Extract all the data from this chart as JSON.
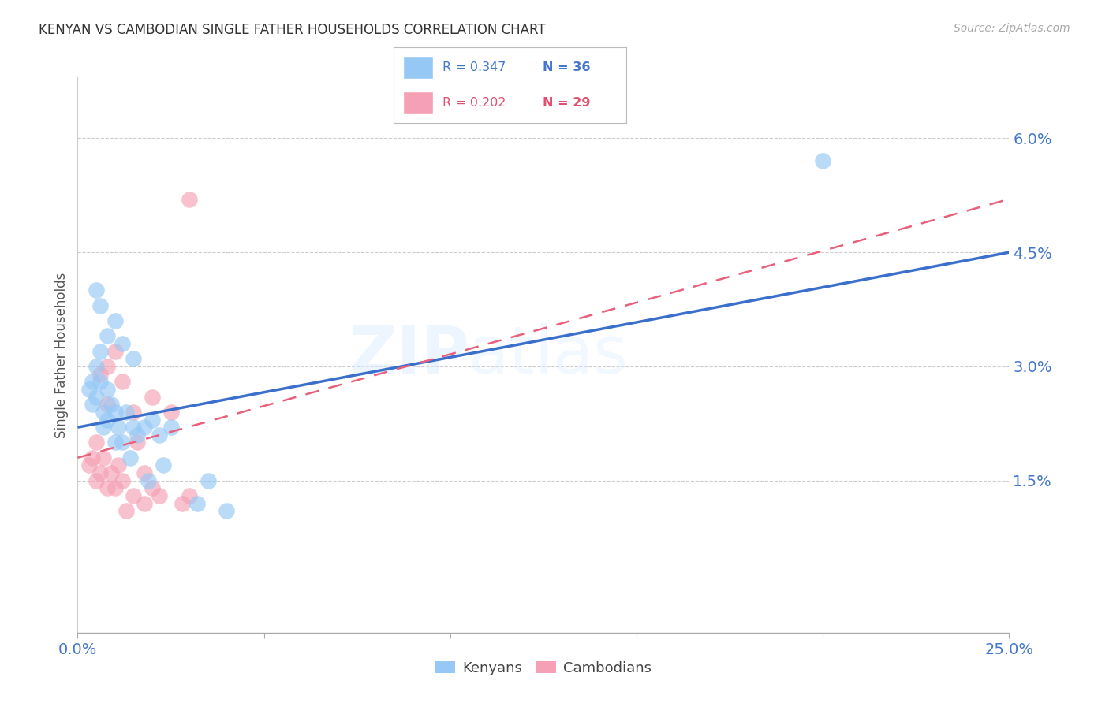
{
  "title": "KENYAN VS CAMBODIAN SINGLE FATHER HOUSEHOLDS CORRELATION CHART",
  "source": "Source: ZipAtlas.com",
  "ylabel": "Single Father Households",
  "xlim": [
    0.0,
    0.25
  ],
  "ylim": [
    -0.005,
    0.068
  ],
  "ytick_vals": [
    0.015,
    0.03,
    0.045,
    0.06
  ],
  "ytick_labels": [
    "1.5%",
    "3.0%",
    "4.5%",
    "6.0%"
  ],
  "xtick_vals": [
    0.0,
    0.05,
    0.1,
    0.15,
    0.2,
    0.25
  ],
  "xtick_labels": [
    "0.0%",
    "",
    "",
    "",
    "",
    "25.0%"
  ],
  "kenya_color": "#95C8F5",
  "camb_color": "#F5A0B5",
  "kenya_line_color": "#3B6FCC",
  "camb_line_color": "#E8607A",
  "kenya_x": [
    0.003,
    0.004,
    0.004,
    0.005,
    0.005,
    0.006,
    0.006,
    0.007,
    0.007,
    0.008,
    0.008,
    0.009,
    0.01,
    0.01,
    0.011,
    0.012,
    0.013,
    0.014,
    0.015,
    0.016,
    0.018,
    0.019,
    0.02,
    0.022,
    0.023,
    0.025,
    0.005,
    0.006,
    0.008,
    0.01,
    0.012,
    0.015,
    0.2,
    0.032,
    0.04,
    0.035
  ],
  "kenya_y": [
    0.027,
    0.025,
    0.028,
    0.026,
    0.03,
    0.028,
    0.032,
    0.024,
    0.022,
    0.023,
    0.027,
    0.025,
    0.02,
    0.024,
    0.022,
    0.02,
    0.024,
    0.018,
    0.022,
    0.021,
    0.022,
    0.015,
    0.023,
    0.021,
    0.017,
    0.022,
    0.04,
    0.038,
    0.034,
    0.036,
    0.033,
    0.031,
    0.057,
    0.012,
    0.011,
    0.015
  ],
  "camb_x": [
    0.003,
    0.004,
    0.005,
    0.005,
    0.006,
    0.007,
    0.008,
    0.008,
    0.009,
    0.01,
    0.011,
    0.012,
    0.013,
    0.015,
    0.016,
    0.018,
    0.02,
    0.006,
    0.008,
    0.01,
    0.012,
    0.015,
    0.018,
    0.02,
    0.025,
    0.028,
    0.03,
    0.022,
    0.03
  ],
  "camb_y": [
    0.017,
    0.018,
    0.015,
    0.02,
    0.016,
    0.018,
    0.014,
    0.025,
    0.016,
    0.014,
    0.017,
    0.015,
    0.011,
    0.013,
    0.02,
    0.012,
    0.026,
    0.029,
    0.03,
    0.032,
    0.028,
    0.024,
    0.016,
    0.014,
    0.024,
    0.012,
    0.013,
    0.013,
    0.052
  ]
}
